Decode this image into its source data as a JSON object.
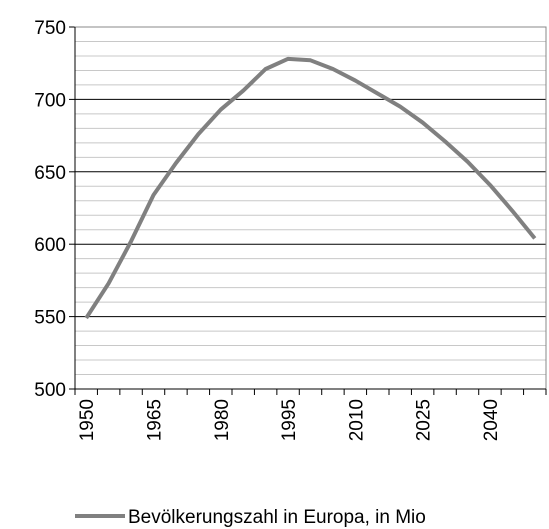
{
  "chart_data": {
    "type": "line",
    "categories": [
      "1950",
      null,
      null,
      "1965",
      null,
      null,
      "1980",
      null,
      null,
      "1995",
      null,
      null,
      "2010",
      null,
      null,
      "2025",
      null,
      null,
      "2040",
      null,
      null
    ],
    "series": [
      {
        "name": "Bevölkerungszahl in Europa, in Mio",
        "color": "#808080",
        "values": [
          549,
          573,
          602,
          634,
          656,
          676,
          693,
          706,
          721,
          728,
          727,
          721,
          713,
          704,
          695,
          684,
          671,
          657,
          641,
          623,
          604
        ]
      }
    ],
    "ylim": [
      500,
      750
    ],
    "yticks": [
      500,
      550,
      600,
      650,
      700,
      750
    ],
    "minor_yticks": [
      510,
      520,
      530,
      540,
      560,
      570,
      580,
      590,
      610,
      620,
      630,
      640,
      660,
      670,
      680,
      690,
      710,
      720,
      730,
      740
    ],
    "grid": true,
    "legend": "bottom"
  }
}
